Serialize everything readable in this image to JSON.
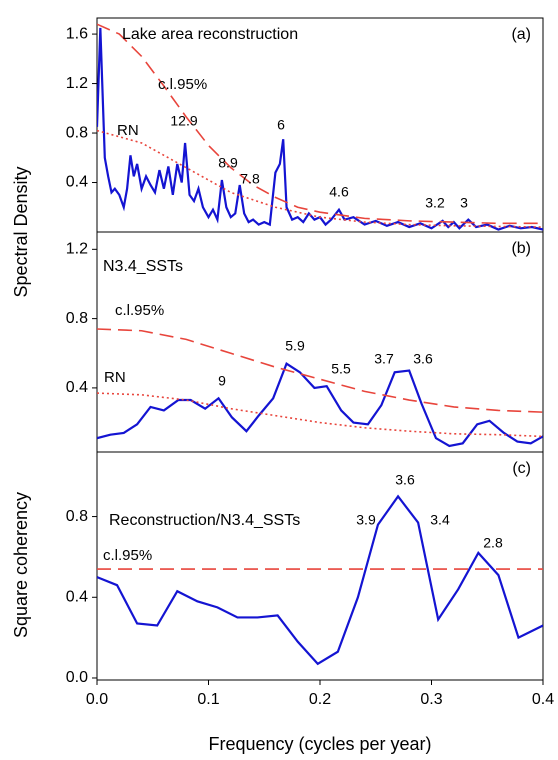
{
  "chart_data": [
    {
      "type": "line",
      "title": "Lake area reconstruction",
      "panel_label": "(a)",
      "ylabel": "Spectral Density",
      "xlim": [
        0,
        0.4
      ],
      "ylim": [
        0,
        1.73
      ],
      "yticks": [
        0.4,
        0.8,
        1.2,
        1.6
      ],
      "series": [
        {
          "color": "#1414d2",
          "style": "solid",
          "x": [
            0,
            0.003,
            0.007,
            0.01,
            0.013,
            0.016,
            0.02,
            0.024,
            0.027,
            0.03,
            0.033,
            0.036,
            0.04,
            0.044,
            0.048,
            0.052,
            0.056,
            0.06,
            0.064,
            0.068,
            0.072,
            0.076,
            0.079,
            0.083,
            0.087,
            0.091,
            0.095,
            0.1,
            0.104,
            0.108,
            0.112,
            0.116,
            0.12,
            0.124,
            0.128,
            0.132,
            0.136,
            0.14,
            0.145,
            0.15,
            0.155,
            0.16,
            0.164,
            0.167,
            0.17,
            0.175,
            0.18,
            0.185,
            0.19,
            0.195,
            0.2,
            0.205,
            0.21,
            0.217,
            0.222,
            0.23,
            0.24,
            0.25,
            0.26,
            0.27,
            0.28,
            0.29,
            0.3,
            0.31,
            0.315,
            0.32,
            0.325,
            0.333,
            0.34,
            0.35,
            0.36,
            0.37,
            0.38,
            0.39,
            0.4
          ],
          "values": [
            0.85,
            1.65,
            0.6,
            0.45,
            0.32,
            0.35,
            0.3,
            0.2,
            0.35,
            0.62,
            0.45,
            0.55,
            0.35,
            0.45,
            0.38,
            0.32,
            0.5,
            0.35,
            0.53,
            0.3,
            0.55,
            0.4,
            0.72,
            0.3,
            0.25,
            0.35,
            0.2,
            0.12,
            0.18,
            0.1,
            0.42,
            0.2,
            0.12,
            0.15,
            0.38,
            0.15,
            0.08,
            0.1,
            0.06,
            0.08,
            0.06,
            0.48,
            0.55,
            0.75,
            0.2,
            0.1,
            0.12,
            0.08,
            0.15,
            0.1,
            0.12,
            0.06,
            0.1,
            0.18,
            0.1,
            0.12,
            0.06,
            0.09,
            0.05,
            0.08,
            0.04,
            0.07,
            0.03,
            0.09,
            0.04,
            0.08,
            0.03,
            0.1,
            0.04,
            0.06,
            0.02,
            0.05,
            0.03,
            0.04,
            0.02
          ]
        },
        {
          "name": "c.l.95%",
          "color": "#e8453c",
          "style": "dashed",
          "x": [
            0,
            0.02,
            0.04,
            0.06,
            0.08,
            0.1,
            0.12,
            0.14,
            0.16,
            0.18,
            0.2,
            0.24,
            0.28,
            0.32,
            0.36,
            0.4
          ],
          "values": [
            1.68,
            1.6,
            1.42,
            1.18,
            0.93,
            0.7,
            0.52,
            0.38,
            0.28,
            0.2,
            0.16,
            0.11,
            0.09,
            0.08,
            0.07,
            0.07
          ]
        },
        {
          "name": "RN",
          "color": "#e8453c",
          "style": "dotted",
          "x": [
            0,
            0.04,
            0.08,
            0.12,
            0.16,
            0.2,
            0.24,
            0.28,
            0.32,
            0.4
          ],
          "values": [
            0.82,
            0.72,
            0.52,
            0.32,
            0.2,
            0.12,
            0.08,
            0.06,
            0.05,
            0.04
          ]
        }
      ],
      "annotations": [
        "12.9",
        "8.9",
        "7.8",
        "6",
        "4.6",
        "3.2",
        "3"
      ]
    },
    {
      "type": "line",
      "title": "N3.4_SSTs",
      "panel_label": "(b)",
      "xlim": [
        0,
        0.4
      ],
      "ylim": [
        0.03,
        1.3
      ],
      "yticks": [
        0.4,
        0.8,
        1.2
      ],
      "series": [
        {
          "color": "#1414d2",
          "style": "solid",
          "x": [
            0,
            0.012,
            0.024,
            0.036,
            0.048,
            0.06,
            0.073,
            0.084,
            0.097,
            0.109,
            0.121,
            0.134,
            0.145,
            0.158,
            0.17,
            0.182,
            0.195,
            0.206,
            0.219,
            0.23,
            0.243,
            0.255,
            0.267,
            0.28,
            0.291,
            0.304,
            0.316,
            0.328,
            0.341,
            0.352,
            0.365,
            0.377,
            0.389,
            0.4
          ],
          "values": [
            0.11,
            0.13,
            0.14,
            0.19,
            0.29,
            0.27,
            0.33,
            0.33,
            0.28,
            0.34,
            0.23,
            0.15,
            0.24,
            0.34,
            0.54,
            0.49,
            0.4,
            0.41,
            0.27,
            0.2,
            0.19,
            0.3,
            0.49,
            0.5,
            0.31,
            0.11,
            0.065,
            0.08,
            0.19,
            0.21,
            0.14,
            0.09,
            0.08,
            0.12
          ]
        },
        {
          "name": "c.l.95%",
          "color": "#e8453c",
          "style": "dashed",
          "x": [
            0,
            0.04,
            0.08,
            0.12,
            0.16,
            0.2,
            0.24,
            0.28,
            0.32,
            0.36,
            0.4
          ],
          "values": [
            0.74,
            0.73,
            0.68,
            0.6,
            0.52,
            0.45,
            0.38,
            0.33,
            0.29,
            0.27,
            0.26
          ]
        },
        {
          "name": "RN",
          "color": "#e8453c",
          "style": "dotted",
          "x": [
            0,
            0.04,
            0.08,
            0.12,
            0.16,
            0.2,
            0.24,
            0.28,
            0.32,
            0.36,
            0.4
          ],
          "values": [
            0.37,
            0.36,
            0.33,
            0.28,
            0.24,
            0.2,
            0.17,
            0.15,
            0.135,
            0.13,
            0.12
          ]
        }
      ],
      "annotations": [
        "9",
        "5.9",
        "5.5",
        "3.7",
        "3.6"
      ]
    },
    {
      "type": "line",
      "title": "Reconstruction/N3.4_SSTs",
      "panel_label": "(c)",
      "ylabel": "Square coherency",
      "xlabel": "Frequency (cycles per year)",
      "xlim": [
        0,
        0.4
      ],
      "ylim": [
        -0.01,
        1.12
      ],
      "xticks": [
        {
          "value": 0,
          "label": "0.0"
        },
        0.1,
        0.2,
        0.3,
        0.4
      ],
      "yticks": [
        {
          "value": 0,
          "label": "0.0"
        },
        0.4,
        0.8
      ],
      "series": [
        {
          "color": "#1414d2",
          "style": "solid",
          "x": [
            0,
            0.018,
            0.036,
            0.054,
            0.072,
            0.09,
            0.108,
            0.126,
            0.144,
            0.162,
            0.18,
            0.198,
            0.216,
            0.234,
            0.252,
            0.27,
            0.288,
            0.306,
            0.324,
            0.342,
            0.36,
            0.378,
            0.4
          ],
          "values": [
            0.5,
            0.46,
            0.27,
            0.26,
            0.43,
            0.38,
            0.35,
            0.3,
            0.3,
            0.31,
            0.18,
            0.07,
            0.13,
            0.4,
            0.76,
            0.9,
            0.77,
            0.29,
            0.44,
            0.62,
            0.51,
            0.2,
            0.26
          ]
        },
        {
          "name": "c.l.95%",
          "color": "#e8453c",
          "style": "dashed",
          "x": [
            0,
            0.4
          ],
          "values": [
            0.54,
            0.54
          ]
        }
      ],
      "annotations": [
        "3.6",
        "3.9",
        "3.4",
        "2.8"
      ]
    }
  ]
}
